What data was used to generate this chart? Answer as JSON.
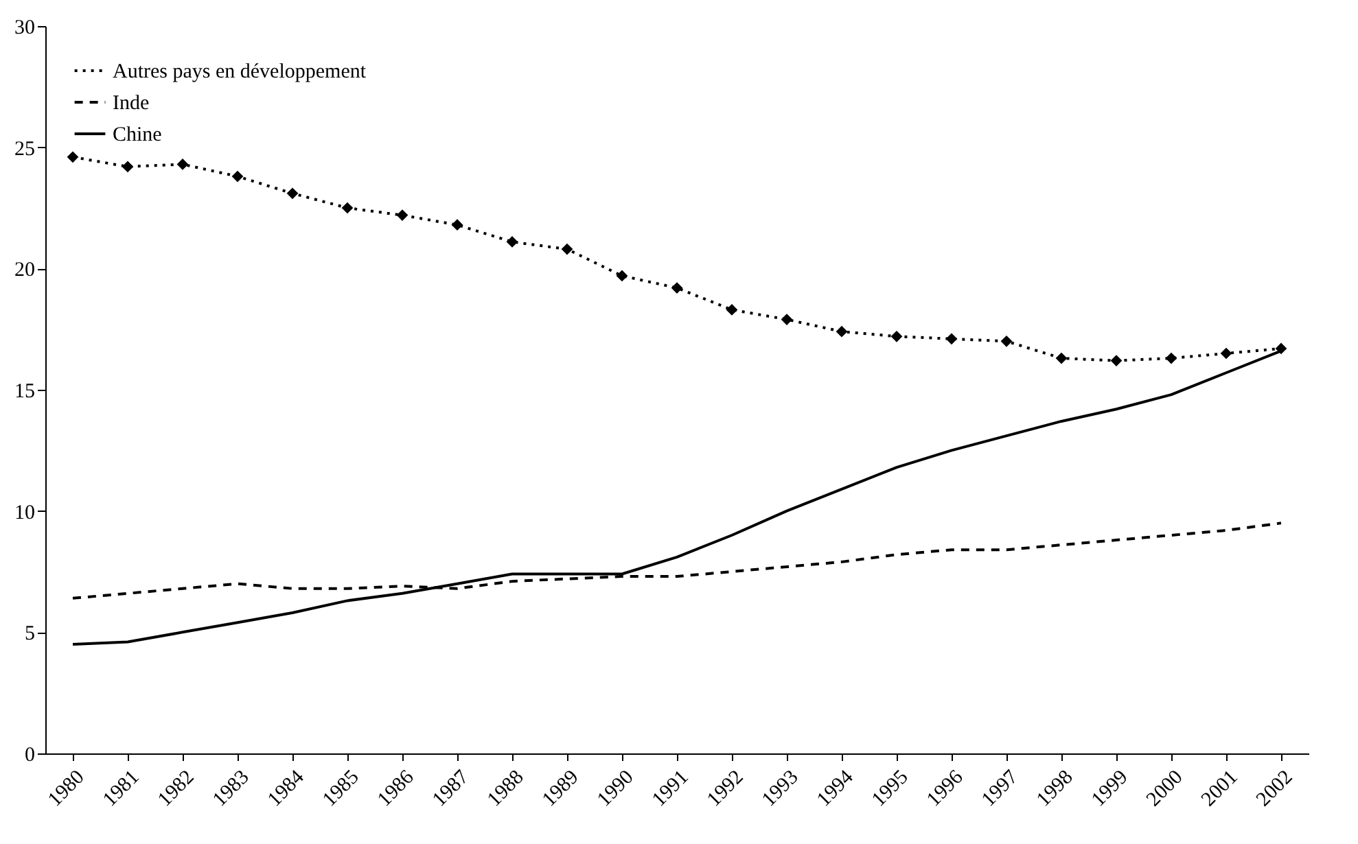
{
  "chart_data": {
    "type": "line",
    "categories": [
      "1980",
      "1981",
      "1982",
      "1983",
      "1984",
      "1985",
      "1986",
      "1987",
      "1988",
      "1989",
      "1990",
      "1991",
      "1992",
      "1993",
      "1994",
      "1995",
      "1996",
      "1997",
      "1998",
      "1999",
      "2000",
      "2001",
      "2002"
    ],
    "series": [
      {
        "name": "Autres pays en développement",
        "color": "#000000",
        "line_style": "dotted",
        "marker": "diamond",
        "values": [
          24.6,
          24.2,
          24.3,
          23.8,
          23.1,
          22.5,
          22.2,
          21.8,
          21.1,
          20.8,
          19.7,
          19.2,
          18.3,
          17.9,
          17.4,
          17.2,
          17.1,
          17.0,
          16.3,
          16.2,
          16.3,
          16.5,
          16.7
        ]
      },
      {
        "name": "Inde",
        "color": "#000000",
        "line_style": "dashed",
        "marker": "none",
        "values": [
          6.4,
          6.6,
          6.8,
          7.0,
          6.8,
          6.8,
          6.9,
          6.8,
          7.1,
          7.2,
          7.3,
          7.3,
          7.5,
          7.7,
          7.9,
          8.2,
          8.4,
          8.4,
          8.6,
          8.8,
          9.0,
          9.2,
          9.5
        ]
      },
      {
        "name": "Chine",
        "color": "#000000",
        "line_style": "solid",
        "marker": "none",
        "values": [
          4.5,
          4.6,
          5.0,
          5.4,
          5.8,
          6.3,
          6.6,
          7.0,
          7.4,
          7.4,
          7.4,
          8.1,
          9.0,
          10.0,
          10.9,
          11.8,
          12.5,
          13.1,
          13.7,
          14.2,
          14.8,
          15.7,
          16.6
        ]
      }
    ],
    "ylim": [
      0,
      30
    ],
    "yticks": [
      0,
      5,
      10,
      15,
      20,
      25,
      30
    ],
    "grid": false,
    "legend": "top left"
  }
}
